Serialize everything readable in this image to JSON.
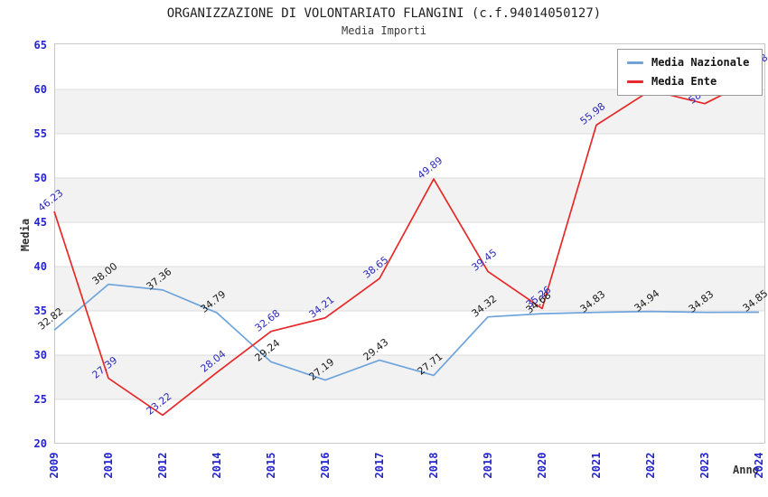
{
  "chart_data": {
    "type": "line",
    "title": "ORGANIZZAZIONE DI VOLONTARIATO FLANGINI (c.f.94014050127)",
    "subtitle": "Media Importi",
    "xlabel": "Anno",
    "ylabel": "Media",
    "categories": [
      "2009",
      "2010",
      "2012",
      "2014",
      "2015",
      "2016",
      "2017",
      "2018",
      "2019",
      "2020",
      "2021",
      "2022",
      "2023",
      "2024"
    ],
    "ylim": [
      20,
      65
    ],
    "ytick_step": 5,
    "grid": "horizontal-gridlines-with-alternating-bands",
    "legend_position": "top-right",
    "series": [
      {
        "name": "Media Nazionale",
        "color": "#6ea3dc",
        "label_color": "#1a1a1a",
        "values": [
          32.82,
          38.0,
          37.36,
          34.79,
          29.24,
          27.19,
          29.43,
          27.71,
          34.32,
          34.68,
          34.83,
          34.94,
          34.83,
          34.85
        ]
      },
      {
        "name": "Media Ente",
        "color": "#e62929",
        "label_color": "#2d2db4",
        "values": [
          46.23,
          27.39,
          23.22,
          28.04,
          32.68,
          34.21,
          38.65,
          49.89,
          39.45,
          35.26,
          55.98,
          59.9,
          58.4,
          61.48
        ],
        "note_labels_hidden_by_legend": [
          "2022",
          "2023"
        ]
      }
    ],
    "colors": {
      "axis_tick_text": "#2424cf",
      "band_fill": "#f2f2f2",
      "gridline": "#dcdcdc",
      "plot_border": "#c9c9c9",
      "background": "#ffffff"
    }
  }
}
